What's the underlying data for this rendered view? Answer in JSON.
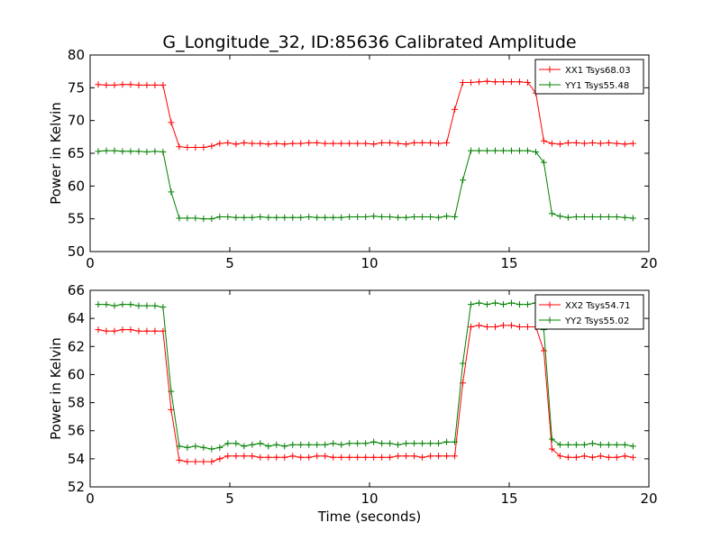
{
  "figure": {
    "title": "G_Longitude_32, ID:85636 Calibrated Amplitude",
    "xlabel": "Time (seconds)"
  },
  "colors": {
    "red": "#ff0000",
    "green": "#008000",
    "axis": "#000000",
    "background": "#ffffff"
  },
  "chart_data": [
    {
      "type": "line",
      "title": "G_Longitude_32, ID:85636 Calibrated Amplitude",
      "xlabel": "",
      "ylabel": "Power in Kelvin",
      "xlim": [
        0,
        20
      ],
      "ylim": [
        50,
        80
      ],
      "xticks": [
        0,
        5,
        10,
        15,
        20
      ],
      "yticks": [
        50,
        55,
        60,
        65,
        70,
        75,
        80
      ],
      "grid": false,
      "legend_position": "top-right",
      "series": [
        {
          "name": "XX1 Tsys68.03",
          "color": "#ff0000",
          "x": [
            0.29,
            0.58,
            0.87,
            1.16,
            1.45,
            1.74,
            2.03,
            2.32,
            2.61,
            2.9,
            3.19,
            3.48,
            3.77,
            4.06,
            4.35,
            4.64,
            4.93,
            5.22,
            5.51,
            5.8,
            6.09,
            6.38,
            6.67,
            6.96,
            7.25,
            7.54,
            7.83,
            8.12,
            8.41,
            8.7,
            8.99,
            9.28,
            9.57,
            9.86,
            10.15,
            10.44,
            10.73,
            11.02,
            11.31,
            11.6,
            11.89,
            12.18,
            12.47,
            12.76,
            13.05,
            13.34,
            13.63,
            13.92,
            14.21,
            14.5,
            14.79,
            15.08,
            15.37,
            15.66,
            15.95,
            16.24,
            16.53,
            16.82,
            17.11,
            17.4,
            17.69,
            17.98,
            18.27,
            18.56,
            18.85,
            19.14,
            19.43
          ],
          "y": [
            75.5,
            75.4,
            75.4,
            75.5,
            75.5,
            75.4,
            75.4,
            75.4,
            75.4,
            69.7,
            66.0,
            65.9,
            65.9,
            65.9,
            66.1,
            66.5,
            66.6,
            66.4,
            66.6,
            66.5,
            66.5,
            66.4,
            66.5,
            66.4,
            66.5,
            66.5,
            66.6,
            66.6,
            66.5,
            66.5,
            66.5,
            66.5,
            66.5,
            66.5,
            66.4,
            66.6,
            66.6,
            66.5,
            66.4,
            66.6,
            66.6,
            66.6,
            66.5,
            66.6,
            71.7,
            75.8,
            75.8,
            75.9,
            76.0,
            75.9,
            75.9,
            75.9,
            75.9,
            75.8,
            74.2,
            66.9,
            66.5,
            66.4,
            66.6,
            66.6,
            66.5,
            66.6,
            66.5,
            66.6,
            66.5,
            66.4,
            66.5
          ]
        },
        {
          "name": "YY1 Tsys55.48",
          "color": "#008000",
          "x": [
            0.29,
            0.58,
            0.87,
            1.16,
            1.45,
            1.74,
            2.03,
            2.32,
            2.61,
            2.9,
            3.19,
            3.48,
            3.77,
            4.06,
            4.35,
            4.64,
            4.93,
            5.22,
            5.51,
            5.8,
            6.09,
            6.38,
            6.67,
            6.96,
            7.25,
            7.54,
            7.83,
            8.12,
            8.41,
            8.7,
            8.99,
            9.28,
            9.57,
            9.86,
            10.15,
            10.44,
            10.73,
            11.02,
            11.31,
            11.6,
            11.89,
            12.18,
            12.47,
            12.76,
            13.05,
            13.34,
            13.63,
            13.92,
            14.21,
            14.5,
            14.79,
            15.08,
            15.37,
            15.66,
            15.95,
            16.24,
            16.53,
            16.82,
            17.11,
            17.4,
            17.69,
            17.98,
            18.27,
            18.56,
            18.85,
            19.14,
            19.43
          ],
          "y": [
            65.3,
            65.4,
            65.4,
            65.3,
            65.3,
            65.3,
            65.2,
            65.3,
            65.2,
            59.1,
            55.1,
            55.1,
            55.1,
            55.0,
            55.0,
            55.3,
            55.3,
            55.2,
            55.2,
            55.2,
            55.3,
            55.2,
            55.2,
            55.2,
            55.2,
            55.2,
            55.3,
            55.2,
            55.2,
            55.2,
            55.2,
            55.3,
            55.3,
            55.3,
            55.4,
            55.3,
            55.3,
            55.2,
            55.2,
            55.3,
            55.3,
            55.3,
            55.2,
            55.4,
            55.3,
            60.9,
            65.4,
            65.4,
            65.4,
            65.4,
            65.4,
            65.4,
            65.4,
            65.4,
            65.2,
            63.6,
            55.8,
            55.4,
            55.2,
            55.3,
            55.3,
            55.3,
            55.3,
            55.3,
            55.3,
            55.2,
            55.1
          ]
        }
      ]
    },
    {
      "type": "line",
      "title": "",
      "xlabel": "Time (seconds)",
      "ylabel": "Power in Kelvin",
      "xlim": [
        0,
        20
      ],
      "ylim": [
        52,
        66
      ],
      "xticks": [
        0,
        5,
        10,
        15,
        20
      ],
      "yticks": [
        52,
        54,
        56,
        58,
        60,
        62,
        64,
        66
      ],
      "grid": false,
      "legend_position": "top-right",
      "series": [
        {
          "name": "XX2 Tsys54.71",
          "color": "#ff0000",
          "x": [
            0.29,
            0.58,
            0.87,
            1.16,
            1.45,
            1.74,
            2.03,
            2.32,
            2.61,
            2.9,
            3.19,
            3.48,
            3.77,
            4.06,
            4.35,
            4.64,
            4.93,
            5.22,
            5.51,
            5.8,
            6.09,
            6.38,
            6.67,
            6.96,
            7.25,
            7.54,
            7.83,
            8.12,
            8.41,
            8.7,
            8.99,
            9.28,
            9.57,
            9.86,
            10.15,
            10.44,
            10.73,
            11.02,
            11.31,
            11.6,
            11.89,
            12.18,
            12.47,
            12.76,
            13.05,
            13.34,
            13.63,
            13.92,
            14.21,
            14.5,
            14.79,
            15.08,
            15.37,
            15.66,
            15.95,
            16.24,
            16.53,
            16.82,
            17.11,
            17.4,
            17.69,
            17.98,
            18.27,
            18.56,
            18.85,
            19.14,
            19.43
          ],
          "y": [
            63.2,
            63.1,
            63.1,
            63.2,
            63.2,
            63.1,
            63.1,
            63.1,
            63.1,
            57.5,
            53.9,
            53.8,
            53.8,
            53.8,
            53.8,
            54.0,
            54.2,
            54.2,
            54.2,
            54.2,
            54.1,
            54.1,
            54.1,
            54.1,
            54.2,
            54.1,
            54.1,
            54.2,
            54.2,
            54.1,
            54.1,
            54.1,
            54.1,
            54.1,
            54.1,
            54.1,
            54.1,
            54.2,
            54.2,
            54.2,
            54.1,
            54.2,
            54.2,
            54.2,
            54.2,
            59.4,
            63.4,
            63.5,
            63.4,
            63.4,
            63.5,
            63.5,
            63.4,
            63.4,
            63.4,
            61.7,
            54.7,
            54.2,
            54.1,
            54.1,
            54.2,
            54.1,
            54.2,
            54.1,
            54.1,
            54.2,
            54.1
          ]
        },
        {
          "name": "YY2 Tsys55.02",
          "color": "#008000",
          "x": [
            0.29,
            0.58,
            0.87,
            1.16,
            1.45,
            1.74,
            2.03,
            2.32,
            2.61,
            2.9,
            3.19,
            3.48,
            3.77,
            4.06,
            4.35,
            4.64,
            4.93,
            5.22,
            5.51,
            5.8,
            6.09,
            6.38,
            6.67,
            6.96,
            7.25,
            7.54,
            7.83,
            8.12,
            8.41,
            8.7,
            8.99,
            9.28,
            9.57,
            9.86,
            10.15,
            10.44,
            10.73,
            11.02,
            11.31,
            11.6,
            11.89,
            12.18,
            12.47,
            12.76,
            13.05,
            13.34,
            13.63,
            13.92,
            14.21,
            14.5,
            14.79,
            15.08,
            15.37,
            15.66,
            15.95,
            16.24,
            16.53,
            16.82,
            17.11,
            17.4,
            17.69,
            17.98,
            18.27,
            18.56,
            18.85,
            19.14,
            19.43
          ],
          "y": [
            65.0,
            65.0,
            64.9,
            65.0,
            65.0,
            64.9,
            64.9,
            64.9,
            64.8,
            58.8,
            54.9,
            54.8,
            54.9,
            54.8,
            54.7,
            54.8,
            55.1,
            55.1,
            54.9,
            55.0,
            55.1,
            54.9,
            55.0,
            54.9,
            55.0,
            55.0,
            55.0,
            55.0,
            55.0,
            55.1,
            55.0,
            55.1,
            55.1,
            55.1,
            55.2,
            55.1,
            55.1,
            55.0,
            55.1,
            55.1,
            55.1,
            55.1,
            55.1,
            55.2,
            55.2,
            60.8,
            65.0,
            65.1,
            65.0,
            65.1,
            65.0,
            65.1,
            65.0,
            65.0,
            65.1,
            63.2,
            55.4,
            55.0,
            55.0,
            55.0,
            55.0,
            55.1,
            55.0,
            55.0,
            55.0,
            55.0,
            54.9
          ]
        }
      ]
    }
  ]
}
